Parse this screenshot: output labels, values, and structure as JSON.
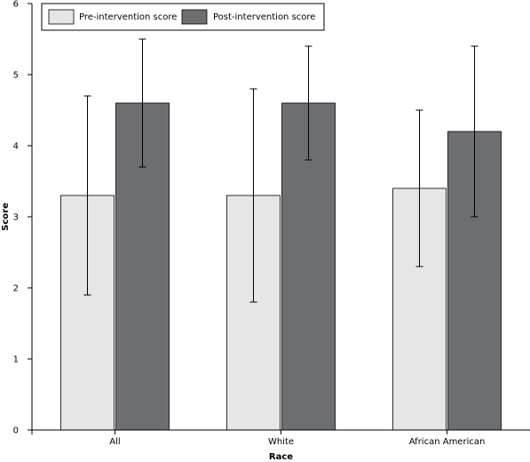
{
  "chart_data": {
    "type": "bar",
    "title": "",
    "xlabel": "Race",
    "ylabel": "Score",
    "ylim": [
      0,
      6
    ],
    "yticks": [
      "0",
      "1",
      "2",
      "3",
      "4",
      "5",
      "6"
    ],
    "grid": false,
    "legend_position": "top-left",
    "categories": [
      "All",
      "White",
      "African American"
    ],
    "series": [
      {
        "name": "Pre-intervention score",
        "color": "#e6e6e6",
        "values": [
          3.3,
          3.3,
          3.4
        ],
        "error_low": [
          1.9,
          1.8,
          2.3
        ],
        "error_high": [
          4.7,
          4.8,
          4.5
        ]
      },
      {
        "name": "Post-intervention score",
        "color": "#6d6e72",
        "values": [
          4.6,
          4.6,
          4.2
        ],
        "error_low": [
          3.7,
          3.8,
          3.0
        ],
        "error_high": [
          5.5,
          5.4,
          5.4
        ]
      }
    ]
  }
}
